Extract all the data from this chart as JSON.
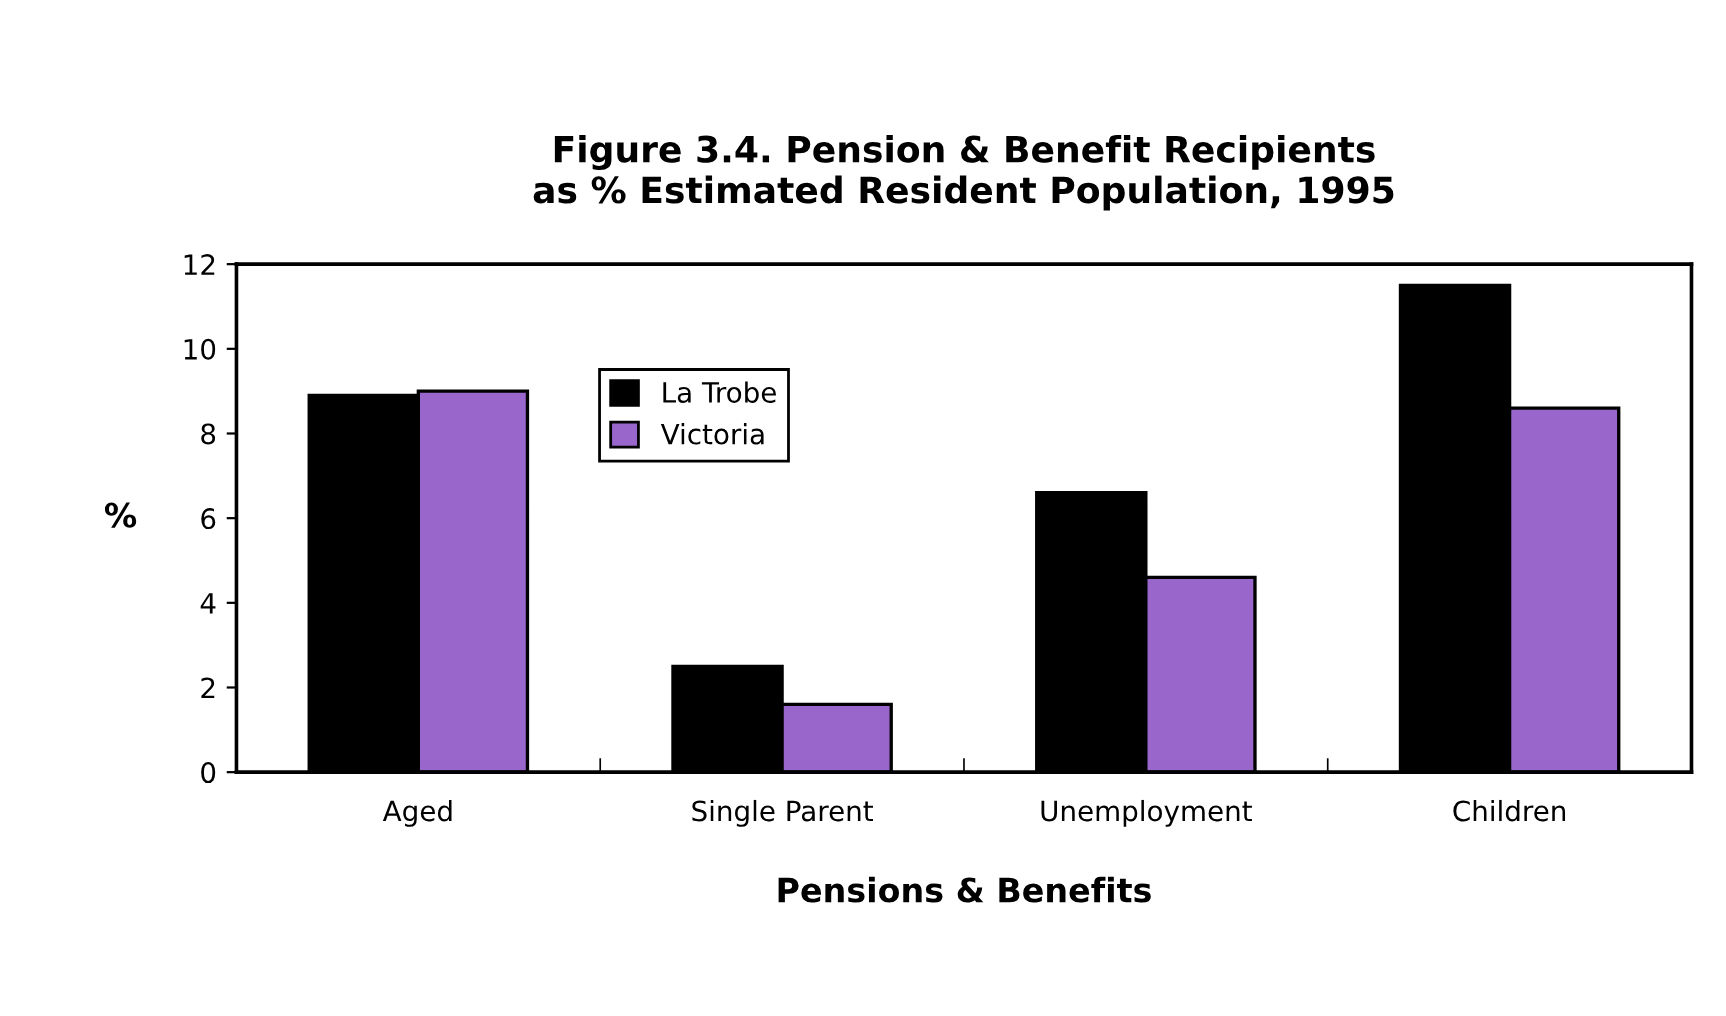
{
  "chart_data": {
    "type": "bar",
    "title": "Figure 3.4. Pension & Benefit Recipients\nas % Estimated Resident Population, 1995",
    "xlabel": "Pensions & Benefits",
    "ylabel": "%",
    "categories": [
      "Aged",
      "Single Parent",
      "Unemployment",
      "Children"
    ],
    "series": [
      {
        "name": "La Trobe",
        "color": "#000000",
        "values": [
          8.9,
          2.5,
          6.6,
          11.5
        ]
      },
      {
        "name": "Victoria",
        "color": "#9966cc",
        "values": [
          9.0,
          1.6,
          4.6,
          8.6
        ]
      }
    ],
    "ylim": [
      0,
      12
    ],
    "yticks": [
      0,
      2,
      4,
      6,
      8,
      10,
      12
    ],
    "grid": false,
    "legend": "top left"
  }
}
